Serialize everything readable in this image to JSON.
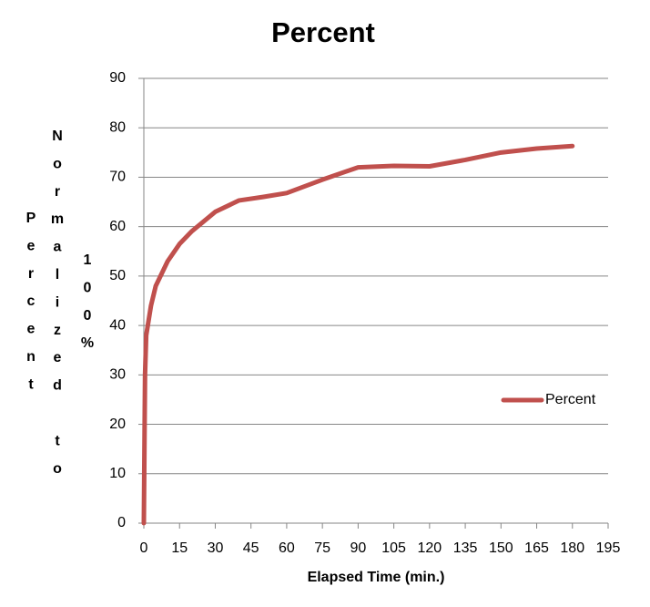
{
  "chart_data": {
    "type": "line",
    "title": "Percent",
    "x_label": "Elapsed Time (min.)",
    "y_label": [
      "Percent",
      "Normalized to",
      "100%"
    ],
    "x": [
      0,
      0.5,
      1,
      3,
      5,
      10,
      15,
      20,
      30,
      40,
      50,
      60,
      75,
      90,
      105,
      120,
      135,
      150,
      165,
      180
    ],
    "series": [
      {
        "name": "Percent",
        "color": "#c0504d",
        "values": [
          0,
          30,
          38,
          44,
          48,
          53,
          56.5,
          59,
          63,
          65.3,
          66,
          66.8,
          69.5,
          72,
          72.3,
          72.2,
          73.5,
          75,
          75.8,
          76.3
        ]
      }
    ],
    "xlim": [
      0,
      195
    ],
    "xticks": [
      0,
      15,
      30,
      45,
      60,
      75,
      90,
      105,
      120,
      135,
      150,
      165,
      180,
      195
    ],
    "ylim": [
      0,
      90
    ],
    "yticks": [
      0,
      10,
      20,
      30,
      40,
      50,
      60,
      70,
      80,
      90
    ],
    "grid": true,
    "legend": "right"
  }
}
